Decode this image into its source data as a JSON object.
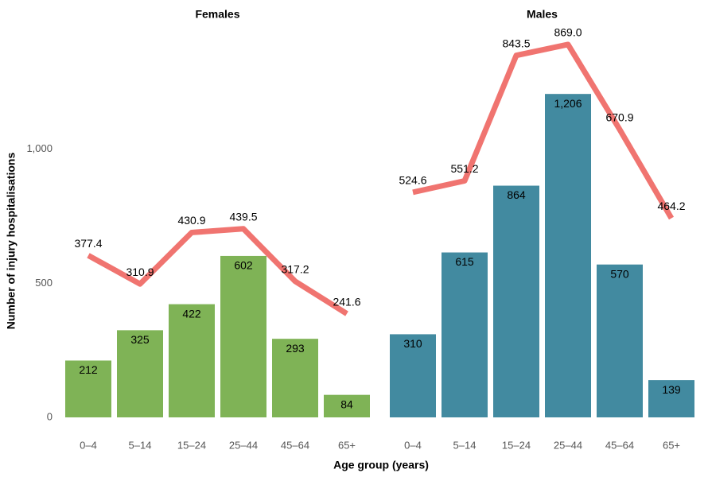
{
  "chart_data": {
    "type": "bar",
    "ylabel": "Number of injury hospitalisations",
    "xlabel": "Age group (years)",
    "ylim": [
      0,
      1500
    ],
    "yticks": [
      0,
      500,
      {
        "value": 1000,
        "label": "1,000"
      }
    ],
    "y2lim": [
      0,
      937.5
    ],
    "categories": [
      "0–4",
      "5–14",
      "15–24",
      "25–44",
      "45–64",
      "65+"
    ],
    "panels": [
      {
        "title": "Females",
        "series": [
          {
            "type": "bar",
            "color": "#7fb356",
            "values": [
              212,
              325,
              422,
              602,
              293,
              84
            ],
            "value_labels": [
              "212",
              "325",
              "422",
              "602",
              "293",
              "84"
            ]
          },
          {
            "type": "line",
            "axis": "y2",
            "color": "#f07470",
            "values": [
              377.4,
              310.9,
              430.9,
              439.5,
              317.2,
              241.6
            ],
            "value_labels": [
              "377.4",
              "310.9",
              "430.9",
              "439.5",
              "317.2",
              "241.6"
            ]
          }
        ]
      },
      {
        "title": "Males",
        "series": [
          {
            "type": "bar",
            "color": "#428aa0",
            "values": [
              310,
              615,
              864,
              1206,
              570,
              139
            ],
            "value_labels": [
              "310",
              "615",
              "864",
              "1,206",
              "570",
              "139"
            ]
          },
          {
            "type": "line",
            "axis": "y2",
            "color": "#f07470",
            "values": [
              524.6,
              551.2,
              843.5,
              869.0,
              670.9,
              464.2
            ],
            "value_labels": [
              "524.6",
              "551.2",
              "843.5",
              "869.0",
              "670.9",
              "464.2"
            ]
          }
        ]
      }
    ]
  }
}
